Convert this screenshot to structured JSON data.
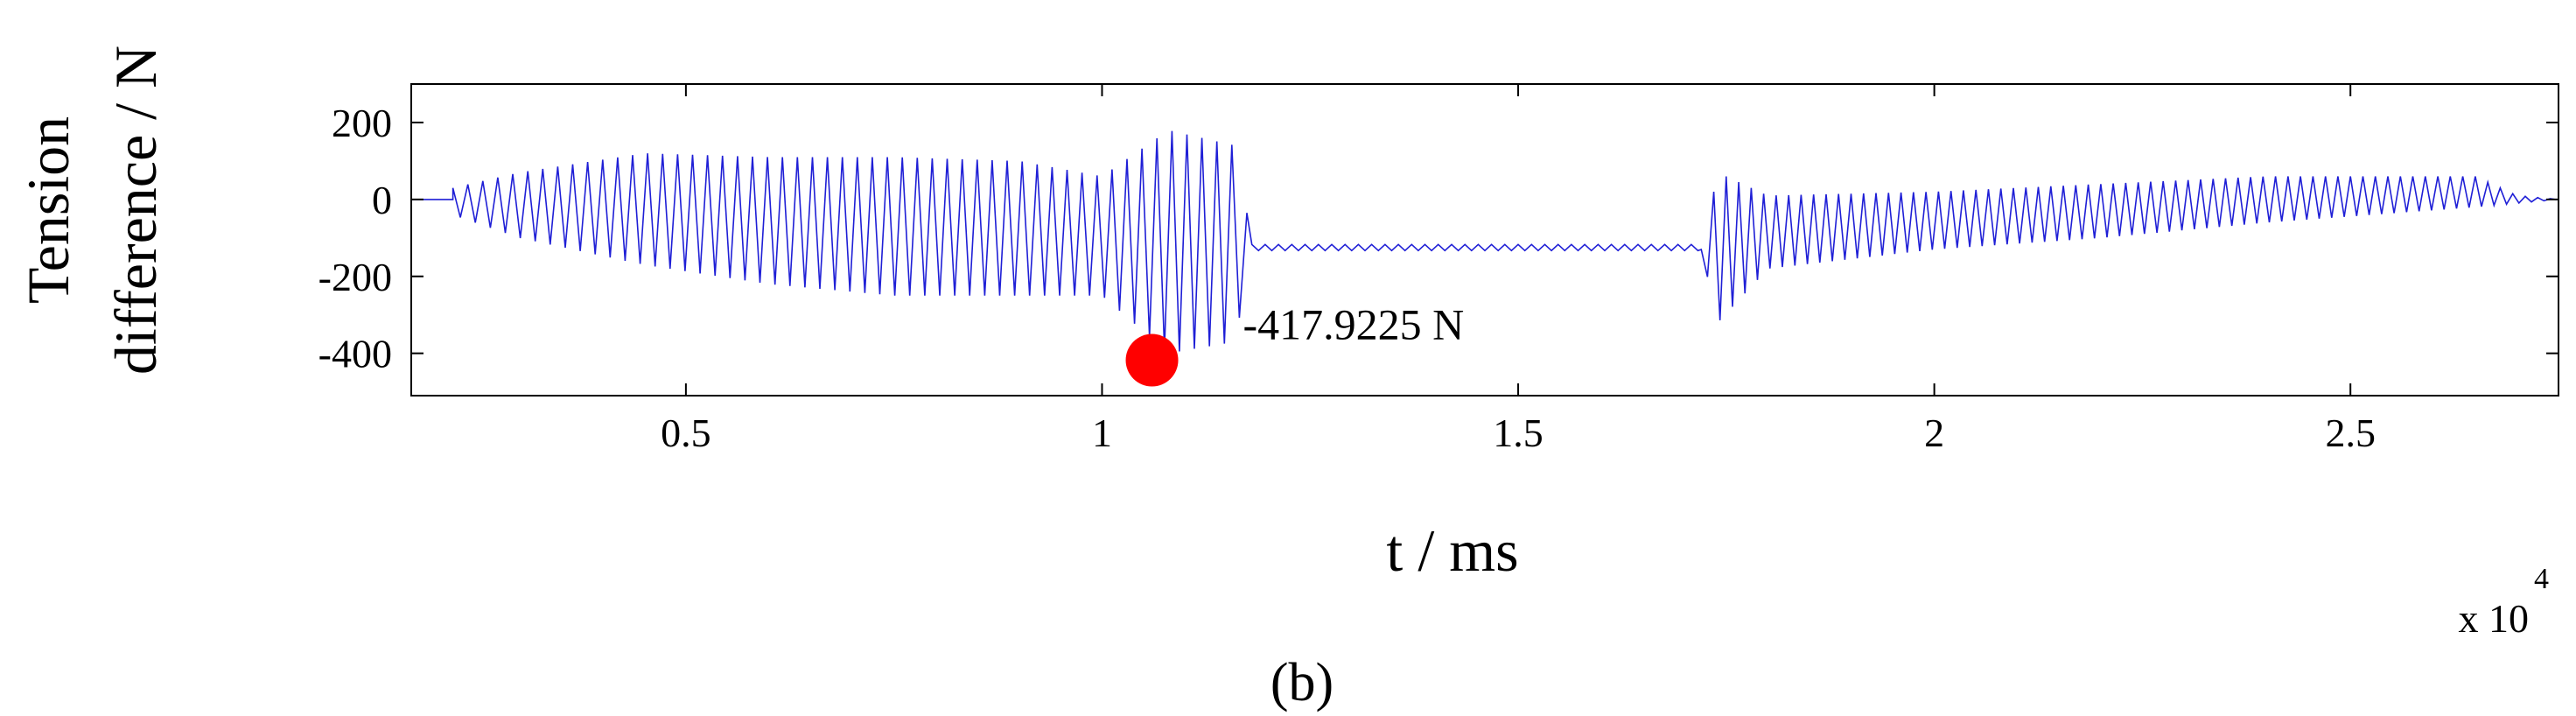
{
  "chart_data": {
    "type": "line",
    "xlabel": "t / ms",
    "ylabel_lines": [
      "Tension",
      "difference / N"
    ],
    "x_multiplier": "x 10",
    "x_multiplier_exp": "4",
    "xlim": [
      1700,
      27500
    ],
    "ylim": [
      -510,
      300
    ],
    "xticks": [
      5000,
      10000,
      15000,
      20000,
      25000
    ],
    "xtick_labels": [
      "0.5",
      "1",
      "1.5",
      "2",
      "2.5"
    ],
    "yticks": [
      200,
      0,
      -200,
      -400
    ],
    "ytick_labels": [
      "200",
      "0",
      "-200",
      "-400"
    ],
    "grid": false,
    "legend": "none",
    "series": [
      {
        "color": "#1f1fd6",
        "kind": "oscillating",
        "segments": [
          {
            "x_start": 1700,
            "x_end": 2200,
            "center": 0,
            "amp": 0,
            "period": 200
          },
          {
            "x_start": 2200,
            "x_end": 11800,
            "envelope_x": [
              2200,
              3000,
              4500,
              6000,
              7500,
              9000,
              10000,
              10800,
              11600,
              11800
            ],
            "envelope_top": [
              30,
              70,
              120,
              110,
              110,
              100,
              60,
              180,
              140,
              -110
            ],
            "envelope_bottom": [
              -40,
              -100,
              -170,
              -220,
              -250,
              -250,
              -250,
              -400,
              -370,
              -120
            ],
            "period": 180
          },
          {
            "x_start": 11800,
            "x_end": 17200,
            "center": -125,
            "amp": 8,
            "period": 160
          },
          {
            "x_start": 17200,
            "x_end": 27500,
            "envelope_x": [
              17200,
              17400,
              18000,
              20000,
              22000,
              24000,
              26500,
              27000,
              27500
            ],
            "envelope_top": [
              -130,
              70,
              10,
              20,
              40,
              60,
              60,
              10,
              0
            ],
            "envelope_bottom": [
              -130,
              -320,
              -180,
              -130,
              -100,
              -60,
              -20,
              -10,
              0
            ],
            "period": 150
          }
        ]
      }
    ],
    "annotation": {
      "x": 10600,
      "y": -417.9225,
      "marker_color": "#ff0000",
      "text": "-417.9225 N"
    },
    "panel_label": "(b)"
  }
}
